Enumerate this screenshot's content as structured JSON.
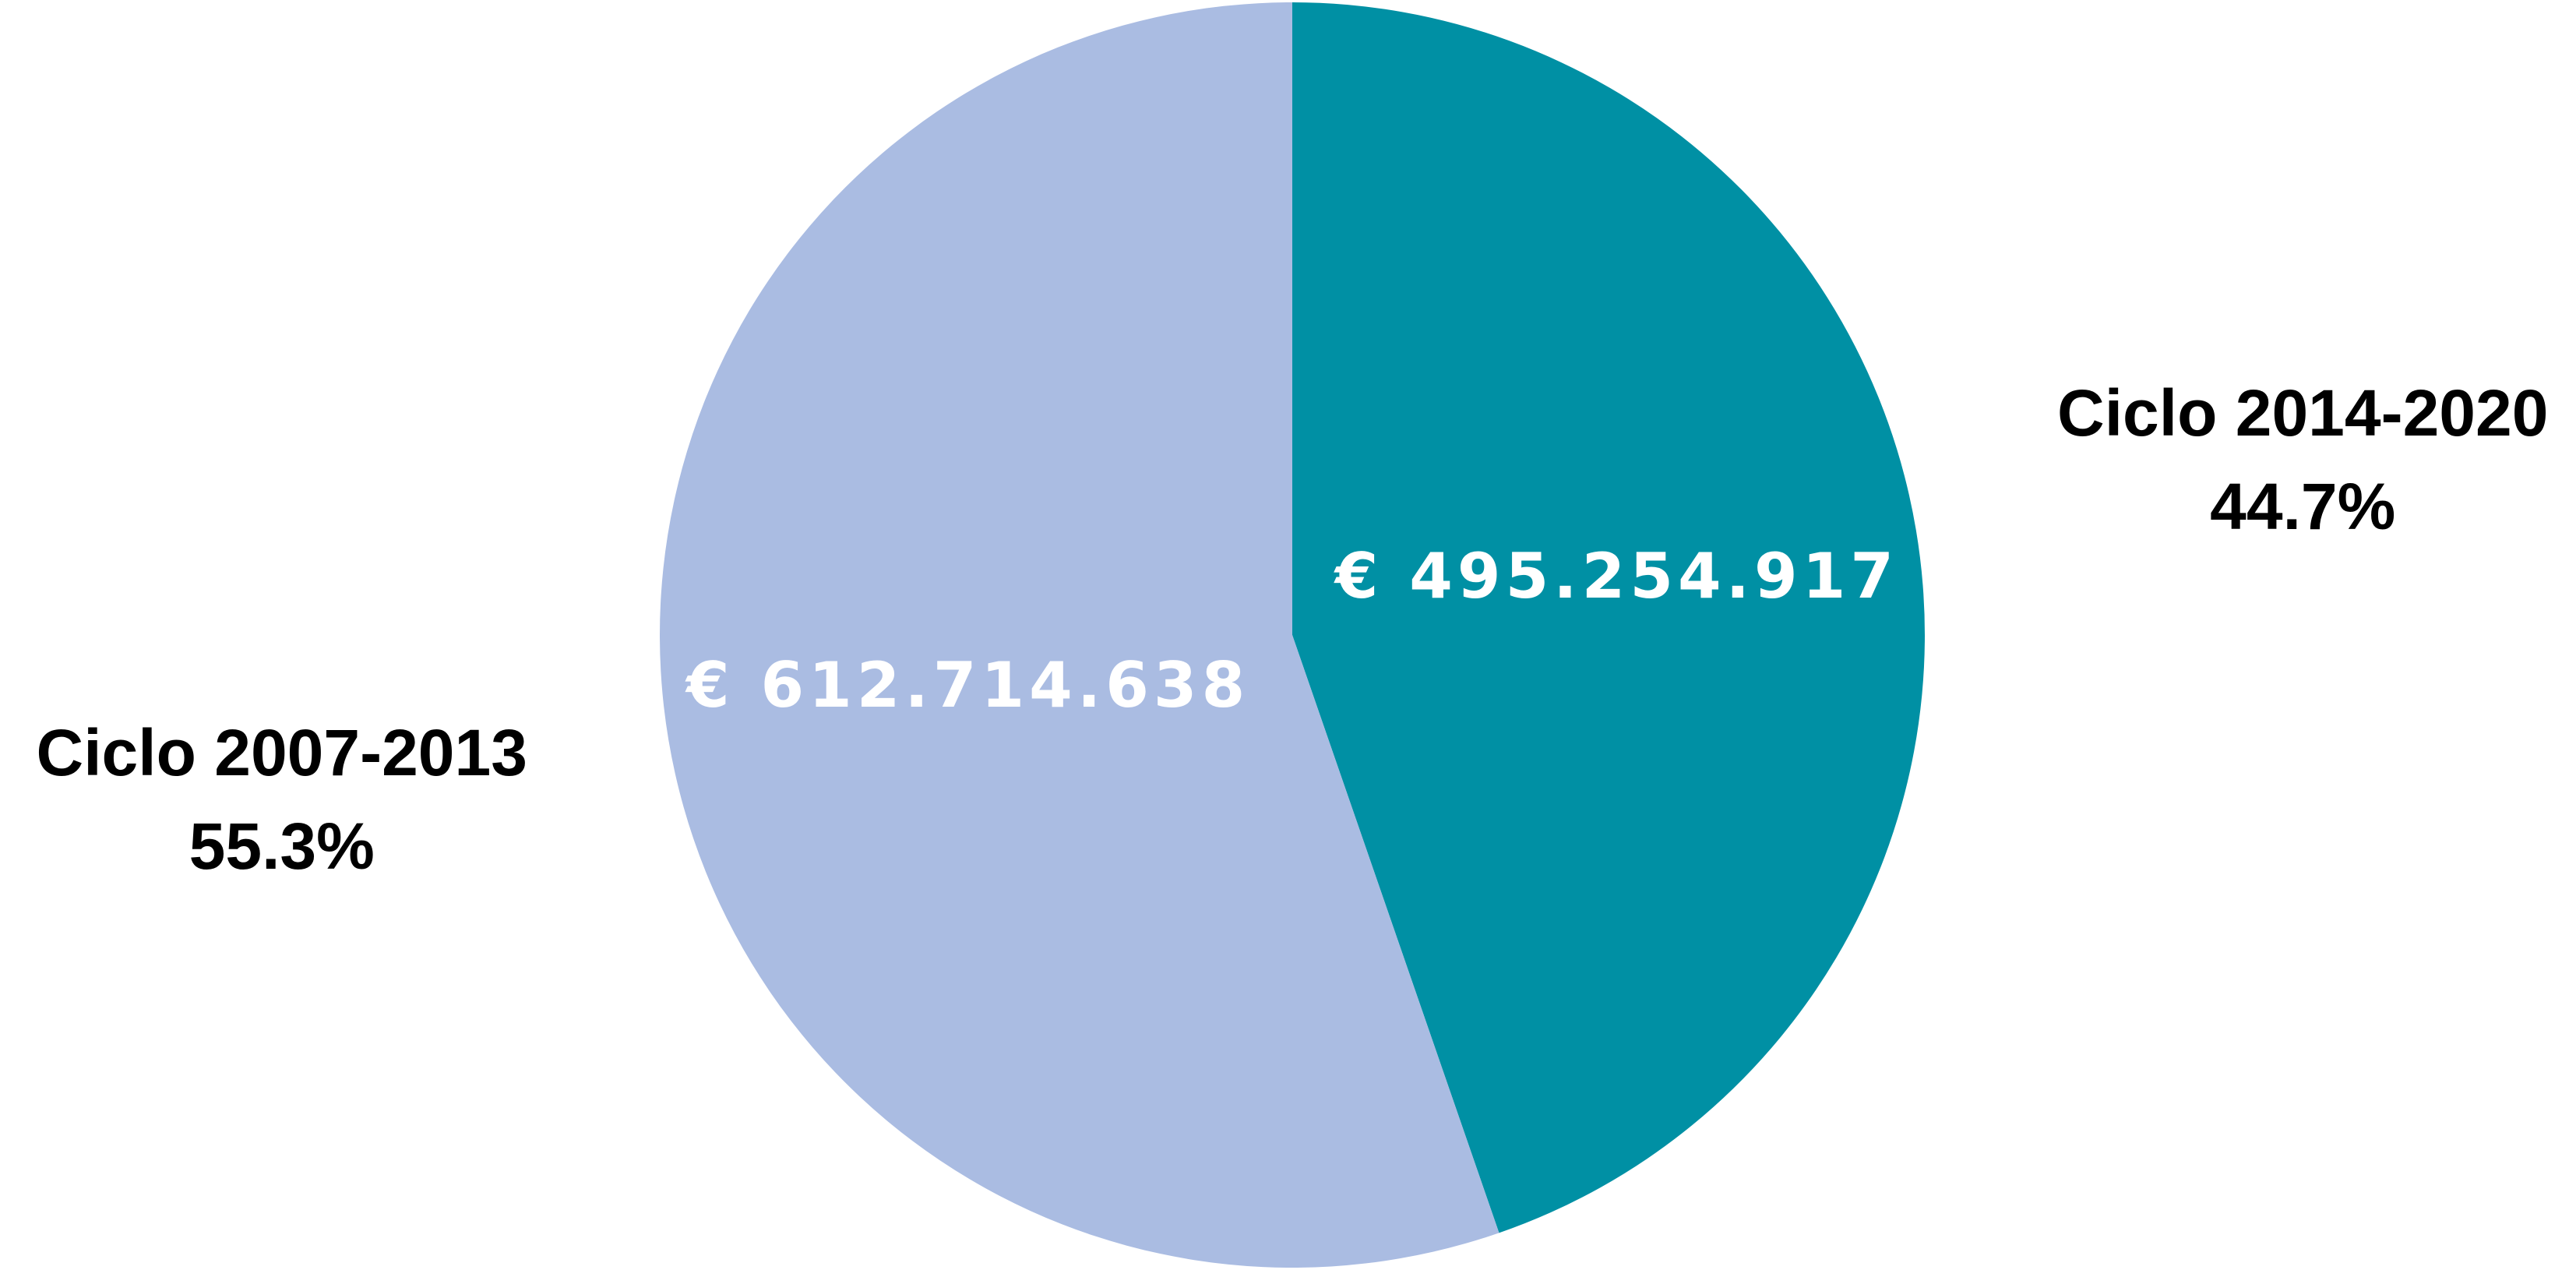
{
  "chart_data": {
    "type": "pie",
    "categories": [
      "Ciclo 2014-2020",
      "Ciclo 2007-2013"
    ],
    "values": [
      495254917,
      612714638
    ],
    "value_labels": [
      "€ 495.254.917",
      "€ 612.714.638"
    ],
    "percents": [
      44.7,
      55.3
    ],
    "percent_labels": [
      "44.7%",
      "55.3%"
    ],
    "colors": [
      "#0090a4",
      "#aabce2"
    ]
  }
}
